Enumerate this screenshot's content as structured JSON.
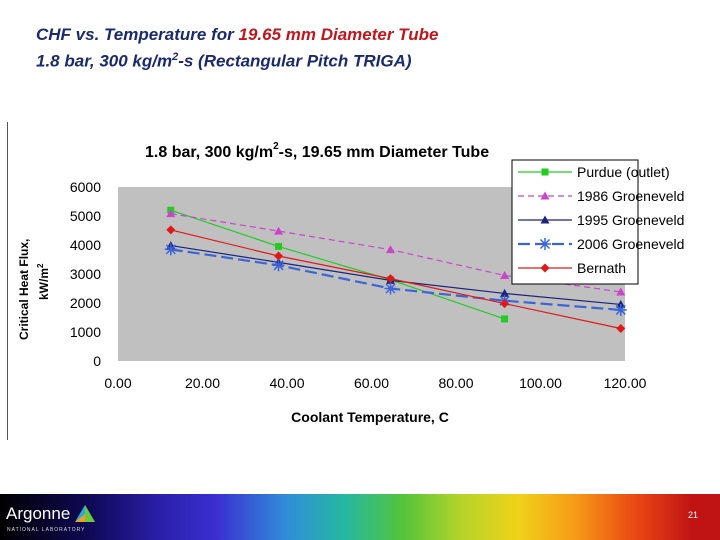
{
  "slide": {
    "title_part1": "CHF vs. Temperature for ",
    "title_highlight": "19.65 mm Diameter Tube",
    "title_line2_a": "1.8 bar, 300 kg/m",
    "title_line2_sup": "2",
    "title_line2_b": "-s (Rectangular Pitch TRIGA)",
    "page_number": "21",
    "logo_text": "Argonne",
    "logo_subtext": "NATIONAL LABORATORY"
  },
  "chart_data": {
    "type": "line",
    "title_a": "1.8 bar, 300 kg/m",
    "title_sup": "2",
    "title_b": "-s, 19.65 mm Diameter Tube",
    "xlabel": "Coolant Temperature, C",
    "ylabel_line1": "Critical Heat Flux,",
    "ylabel_line2": "kW/m",
    "ylabel_sup": "2",
    "xlim": [
      0,
      120
    ],
    "ylim": [
      0,
      6000
    ],
    "xticks": [
      "0.00",
      "20.00",
      "40.00",
      "60.00",
      "80.00",
      "100.00",
      "120.00"
    ],
    "yticks": [
      "0",
      "1000",
      "2000",
      "3000",
      "4000",
      "5000",
      "6000"
    ],
    "plot_background": "#c0c0c0",
    "grid": false,
    "legend_position": "right",
    "series": [
      {
        "name": "Purdue (outlet)",
        "color": "#22cc22",
        "marker": "square",
        "dash": "solid",
        "x": [
          12.5,
          38,
          64.5,
          91.5
        ],
        "y": [
          5200,
          3950,
          2800,
          1450
        ]
      },
      {
        "name": "1986 Groeneveld",
        "color": "#cc44cc",
        "marker": "triangle",
        "dash": "dash",
        "x": [
          12.5,
          38,
          64.5,
          91.5,
          119
        ],
        "y": [
          5080,
          4480,
          3840,
          2950,
          2380
        ]
      },
      {
        "name": "1995 Groeneveld",
        "color": "#1a237e",
        "marker": "triangle",
        "dash": "solid",
        "x": [
          12.5,
          38,
          64.5,
          91.5,
          119
        ],
        "y": [
          3980,
          3400,
          2780,
          2330,
          1950
        ]
      },
      {
        "name": "2006 Groeneveld",
        "color": "#3a64d8",
        "marker": "star",
        "dash": "longdash",
        "x": [
          12.5,
          38,
          64.5,
          91.5,
          119
        ],
        "y": [
          3850,
          3300,
          2500,
          2080,
          1760
        ]
      },
      {
        "name": "Bernath",
        "color": "#e01818",
        "marker": "diamond",
        "dash": "solid",
        "x": [
          12.5,
          38,
          64.5,
          91.5,
          119
        ],
        "y": [
          4520,
          3620,
          2840,
          1980,
          1120
        ]
      }
    ]
  }
}
